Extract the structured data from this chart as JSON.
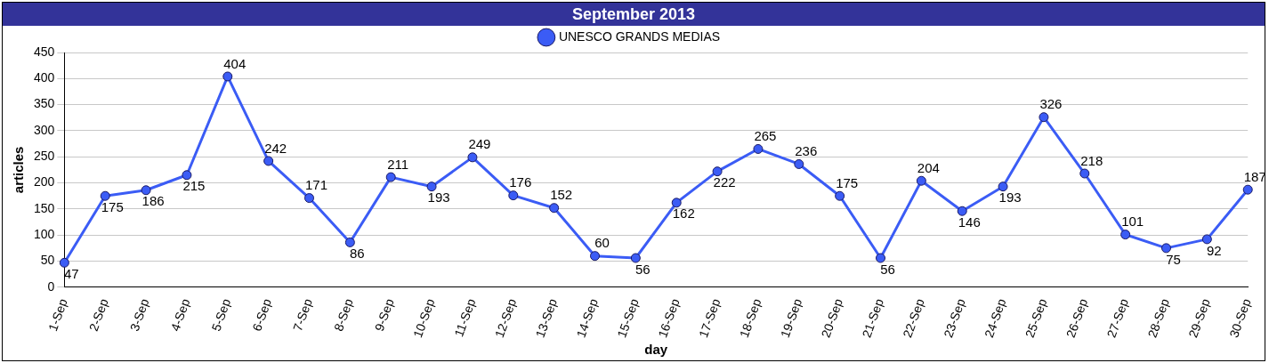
{
  "chart_data": {
    "type": "line",
    "title": "September 2013",
    "xlabel": "day",
    "ylabel": "articles",
    "categories": [
      "1-Sep",
      "2-Sep",
      "3-Sep",
      "4-Sep",
      "5-Sep",
      "6-Sep",
      "7-Sep",
      "8-Sep",
      "9-Sep",
      "10-Sep",
      "11-Sep",
      "12-Sep",
      "13-Sep",
      "14-Sep",
      "15-Sep",
      "16-Sep",
      "17-Sep",
      "18-Sep",
      "19-Sep",
      "20-Sep",
      "21-Sep",
      "22-Sep",
      "23-Sep",
      "24-Sep",
      "25-Sep",
      "26-Sep",
      "27-Sep",
      "28-Sep",
      "29-Sep",
      "30-Sep"
    ],
    "series": [
      {
        "name": "UNESCO GRANDS MEDIAS",
        "color": "#3b5cf5",
        "values": [
          47,
          175,
          186,
          215,
          404,
          242,
          171,
          86,
          211,
          193,
          249,
          176,
          152,
          60,
          56,
          162,
          222,
          265,
          236,
          175,
          56,
          204,
          146,
          193,
          326,
          218,
          101,
          75,
          92,
          187
        ]
      }
    ],
    "ylim": [
      0,
      450
    ],
    "yticks": [
      0,
      50,
      100,
      150,
      200,
      250,
      300,
      350,
      400,
      450
    ],
    "grid": "y",
    "legend": "top",
    "marker": "circle",
    "line_style": "solid",
    "data_labels": true
  }
}
